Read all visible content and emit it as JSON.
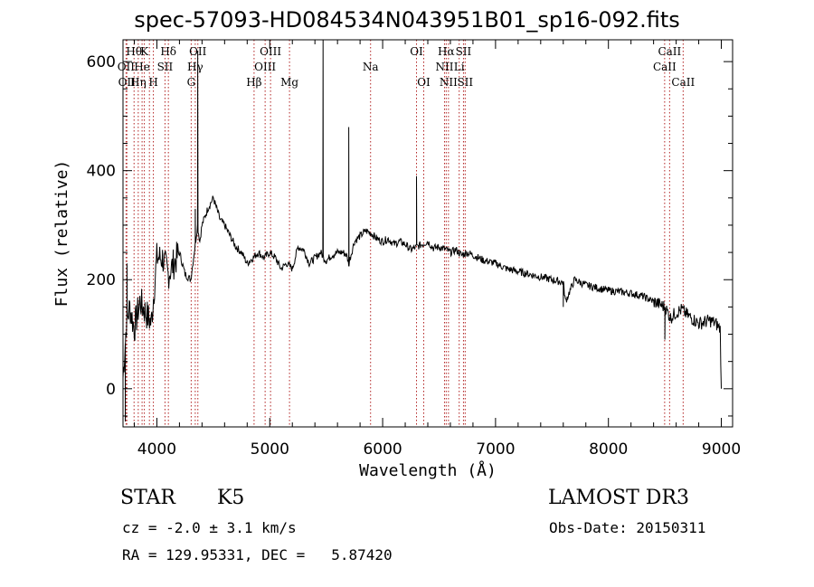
{
  "chart_data": {
    "type": "line",
    "title": "spec-57093-HD084534N043951B01_sp16-092.fits",
    "xlabel": "Wavelength (Å)",
    "ylabel": "Flux (relative)",
    "xlim": [
      3700,
      9100
    ],
    "ylim": [
      -70,
      640
    ],
    "xticks": [
      4000,
      5000,
      6000,
      7000,
      8000,
      9000
    ],
    "yticks": [
      0,
      200,
      400,
      600
    ],
    "minor_x_step": 200,
    "minor_y_step": 50,
    "series": [
      {
        "name": "flux",
        "x": [
          3700,
          3730,
          3760,
          3800,
          3850,
          3900,
          3950,
          4000,
          4050,
          4100,
          4150,
          4200,
          4250,
          4300,
          4340,
          4360,
          4380,
          4400,
          4450,
          4500,
          4530,
          4560,
          4600,
          4650,
          4700,
          4750,
          4800,
          4850,
          4900,
          4950,
          5000,
          5050,
          5100,
          5150,
          5200,
          5250,
          5300,
          5350,
          5400,
          5450,
          5480,
          5500,
          5550,
          5600,
          5650,
          5680,
          5700,
          5750,
          5800,
          5850,
          5900,
          5950,
          6000,
          6050,
          6100,
          6150,
          6200,
          6250,
          6300,
          6350,
          6400,
          6450,
          6500,
          6563,
          6600,
          6650,
          6700,
          6750,
          6800,
          6900,
          7000,
          7100,
          7200,
          7300,
          7400,
          7500,
          7600,
          7620,
          7700,
          7800,
          7900,
          8000,
          8100,
          8200,
          8300,
          8400,
          8500,
          8550,
          8600,
          8650,
          8700,
          8800,
          8900,
          8950,
          8990,
          9000
        ],
        "y": [
          20,
          120,
          150,
          110,
          160,
          140,
          120,
          240,
          240,
          210,
          230,
          250,
          210,
          200,
          265,
          300,
          270,
          300,
          330,
          350,
          330,
          310,
          300,
          280,
          260,
          250,
          230,
          240,
          250,
          240,
          250,
          240,
          220,
          230,
          220,
          260,
          255,
          230,
          240,
          250,
          240,
          235,
          245,
          250,
          250,
          245,
          230,
          270,
          280,
          290,
          285,
          275,
          270,
          275,
          265,
          270,
          265,
          255,
          260,
          265,
          270,
          258,
          260,
          255,
          250,
          255,
          245,
          250,
          245,
          235,
          230,
          220,
          215,
          210,
          205,
          200,
          195,
          160,
          200,
          190,
          185,
          180,
          178,
          175,
          170,
          160,
          150,
          130,
          140,
          145,
          135,
          120,
          125,
          120,
          110,
          0
        ]
      }
    ],
    "spikes": [
      {
        "x": 3720,
        "y": -60
      },
      {
        "x": 3735,
        "y": 230
      },
      {
        "x": 4340,
        "y": 330
      },
      {
        "x": 4362,
        "y": 620
      },
      {
        "x": 5472,
        "y": 640
      },
      {
        "x": 5700,
        "y": 480
      },
      {
        "x": 6300,
        "y": 390
      },
      {
        "x": 7600,
        "y": 150
      },
      {
        "x": 8500,
        "y": 90
      }
    ],
    "lines": [
      {
        "x": 3727,
        "label": "OII",
        "row": 1
      },
      {
        "x": 3734,
        "label": "OII",
        "row": 2
      },
      {
        "x": 3798,
        "label": "Hθ",
        "row": 0
      },
      {
        "x": 3835,
        "label": "Hη",
        "row": 2
      },
      {
        "x": 3869,
        "label": "He",
        "row": 1
      },
      {
        "x": 3889,
        "label": "K",
        "row": 0
      },
      {
        "x": 3934,
        "label": "",
        "row": 0
      },
      {
        "x": 3969,
        "label": "H",
        "row": 2
      },
      {
        "x": 4102,
        "label": "Hδ",
        "row": 0
      },
      {
        "x": 4072,
        "label": "SII",
        "row": 1
      },
      {
        "x": 4304,
        "label": "G",
        "row": 2
      },
      {
        "x": 4340,
        "label": "Hγ",
        "row": 1
      },
      {
        "x": 4363,
        "label": "OII",
        "row": 0
      },
      {
        "x": 4861,
        "label": "Hβ",
        "row": 2
      },
      {
        "x": 4959,
        "label": "OIII",
        "row": 1
      },
      {
        "x": 5007,
        "label": "OIII",
        "row": 0
      },
      {
        "x": 5175,
        "label": "Mg",
        "row": 2
      },
      {
        "x": 5893,
        "label": "Na",
        "row": 1
      },
      {
        "x": 6300,
        "label": "OI",
        "row": 0
      },
      {
        "x": 6364,
        "label": "OI",
        "row": 2
      },
      {
        "x": 6548,
        "label": "NII",
        "row": 1
      },
      {
        "x": 6563,
        "label": "Hα",
        "row": 0
      },
      {
        "x": 6583,
        "label": "NII",
        "row": 2
      },
      {
        "x": 6678,
        "label": "Li",
        "row": 1
      },
      {
        "x": 6716,
        "label": "SII",
        "row": 0
      },
      {
        "x": 6731,
        "label": "SII",
        "row": 2
      },
      {
        "x": 8498,
        "label": "CaII",
        "row": 1
      },
      {
        "x": 8542,
        "label": "CaII",
        "row": 0
      },
      {
        "x": 8662,
        "label": "CaII",
        "row": 2
      }
    ]
  },
  "info": {
    "object_class": "STAR",
    "subclass": "K5",
    "survey": "LAMOST DR3",
    "cz": "cz = -2.0 ± 3.1 km/s",
    "obs_date": "Obs-Date: 20150311",
    "coords": "RA = 129.95331, DEC =   5.87420"
  }
}
